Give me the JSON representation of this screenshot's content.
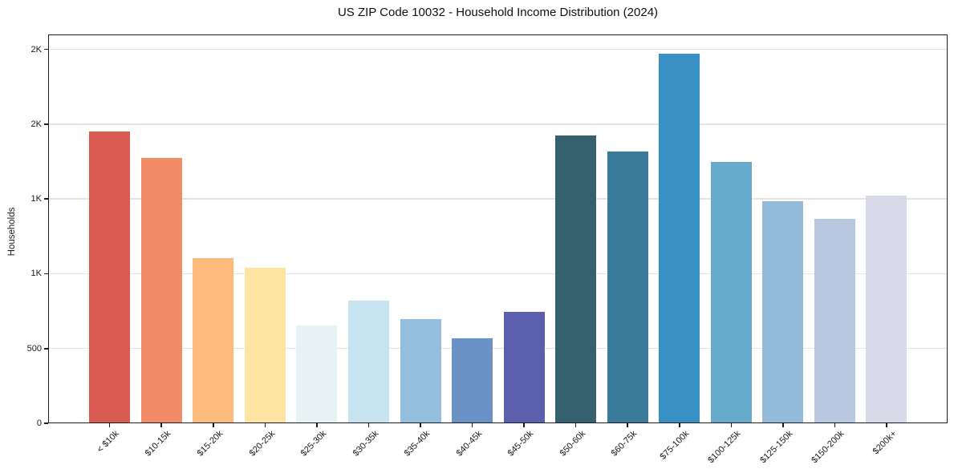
{
  "title": "US ZIP Code 10032 - Household Income Distribution (2024)",
  "chart_data": {
    "type": "bar",
    "title": "US ZIP Code 10032 - Household Income Distribution (2024)",
    "xlabel": "",
    "ylabel": "Households",
    "categories": [
      "< $10k",
      "$10-15k",
      "$15-20k",
      "$20-25k",
      "$25-30k",
      "$30-35k",
      "$35-40k",
      "$40-45k",
      "$45-50k",
      "$50-60k",
      "$60-75k",
      "$75-100k",
      "$100-125k",
      "$125-150k",
      "$150-200k",
      "$200k+"
    ],
    "values": [
      1950,
      1775,
      1105,
      1040,
      655,
      820,
      695,
      570,
      745,
      1925,
      1815,
      2470,
      1745,
      1485,
      1365,
      1525
    ],
    "bar_colors": [
      "#d95b52",
      "#f28b68",
      "#fcba7c",
      "#fde4a1",
      "#e7f2f4",
      "#c6e3ef",
      "#94bedd",
      "#6b92c6",
      "#5c5fae",
      "#35616f",
      "#3a7b9b",
      "#3990c5",
      "#66aacc",
      "#94bbd9",
      "#b9c8e1",
      "#d9dae9"
    ],
    "ylim": [
      0,
      2600
    ],
    "yticks": [
      {
        "value": 0,
        "label": "0"
      },
      {
        "value": 500,
        "label": "500"
      },
      {
        "value": 1000,
        "label": "1K"
      },
      {
        "value": 1500,
        "label": "1K"
      },
      {
        "value": 2000,
        "label": "2K"
      },
      {
        "value": 2500,
        "label": "2K"
      }
    ],
    "grid": "horizontal",
    "legend": "none",
    "grid_color": "#e5e5e5",
    "axis_color": "#1c1c1c",
    "text_color": "#191919"
  }
}
